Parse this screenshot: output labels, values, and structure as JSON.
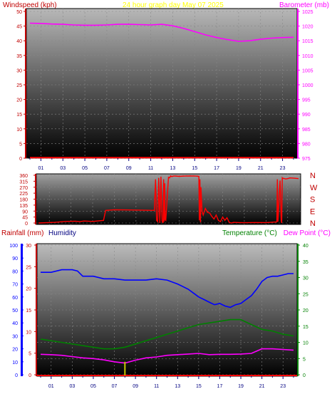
{
  "chart_data": [
    {
      "type": "line",
      "title": "24 hour graph day   May 07 2025",
      "y_left_label": "Windspeed (kph)",
      "y_right_label": "Barometer (mb)",
      "x_ticks": [
        "01",
        "03",
        "05",
        "07",
        "09",
        "11",
        "13",
        "15",
        "17",
        "19",
        "21",
        "23"
      ],
      "y_left_ticks": [
        "0",
        "5",
        "10",
        "15",
        "20",
        "25",
        "30",
        "35",
        "40",
        "45",
        "50"
      ],
      "y_right_ticks": [
        "975",
        "980",
        "985",
        "990",
        "995",
        "1000",
        "1005",
        "1010",
        "1015",
        "1020",
        "1025"
      ],
      "ylim_left": [
        0,
        50
      ],
      "ylim_right": [
        975,
        1025
      ],
      "series": [
        {
          "axis": "right",
          "color": "#ff00ff",
          "x": [
            0,
            1,
            2,
            3,
            4,
            5,
            6,
            7,
            8,
            9,
            10,
            11,
            12,
            13,
            14,
            15,
            16,
            17,
            18,
            19,
            20,
            21,
            22,
            23,
            24
          ],
          "y": [
            1021.0,
            1020.9,
            1020.7,
            1020.6,
            1020.4,
            1020.3,
            1020.3,
            1020.4,
            1020.6,
            1020.6,
            1020.5,
            1020.4,
            1020.6,
            1020.1,
            1019.2,
            1018.1,
            1017.0,
            1016.1,
            1015.4,
            1014.8,
            1015.0,
            1015.5,
            1015.9,
            1016.1,
            1016.2
          ]
        },
        {
          "axis": "left",
          "color": "#ff0000",
          "x": [
            0,
            24
          ],
          "y": [
            0.2,
            0.2
          ]
        }
      ]
    },
    {
      "type": "line",
      "y_ticks": [
        "360",
        "315",
        "270",
        "225",
        "180",
        "135",
        "90",
        "45",
        "0"
      ],
      "right_labels": [
        "N",
        "W",
        "S",
        "E",
        "N"
      ],
      "ylim": [
        0,
        360
      ],
      "series": [
        {
          "color": "#ff0000",
          "x": [
            0,
            1.5,
            2.5,
            3.4,
            3.8,
            4.2,
            5.0,
            6.0,
            6.2,
            7.0,
            8.0,
            9.0,
            10.0,
            10.7,
            10.8,
            10.9,
            11.0,
            11.1,
            11.2,
            11.3,
            11.4,
            11.5,
            11.55,
            11.6,
            11.65,
            11.7,
            11.75,
            12.0,
            12.1,
            12.2,
            12.3,
            12.5,
            13.0,
            13.5,
            14.0,
            14.5,
            14.8,
            14.85,
            14.9,
            14.95,
            15.0,
            15.1,
            15.2,
            15.4,
            15.6,
            15.8,
            16.0,
            16.2,
            16.4,
            16.6,
            16.8,
            17.0,
            17.2,
            17.4,
            17.6,
            17.8,
            18.0,
            18.5,
            19.0,
            20.0,
            21.0,
            22.0,
            22.05,
            22.1,
            22.3,
            22.4,
            22.45,
            22.5,
            22.55,
            22.6,
            22.8,
            23.0,
            23.2,
            23.6,
            24.0
          ],
          "y": [
            0,
            5,
            12,
            14,
            10,
            15,
            12,
            20,
            95,
            100,
            99,
            98,
            96,
            95,
            330,
            20,
            10,
            340,
            0,
            350,
            15,
            0,
            330,
            10,
            300,
            25,
            20,
            345,
            340,
            355,
            350,
            355,
            352,
            354,
            355,
            354,
            352,
            20,
            330,
            5,
            270,
            90,
            60,
            110,
            80,
            75,
            50,
            30,
            60,
            20,
            10,
            45,
            20,
            40,
            5,
            0,
            5,
            3,
            2,
            4,
            3,
            8,
            330,
            10,
            320,
            20,
            0,
            340,
            335,
            338,
            332,
            335,
            340,
            338,
            335
          ]
        }
      ]
    },
    {
      "type": "line",
      "y_left1_label": "Rainfall (mm)",
      "y_left2_label": "Humidity",
      "y_right1_label": "Temperature (°C)",
      "y_right2_label": "Dew Point (°C)",
      "y_left1_ticks": [
        "0",
        "10",
        "20",
        "30",
        "40",
        "50",
        "60",
        "70",
        "80",
        "90",
        "100"
      ],
      "y_left2_ticks": [
        "0",
        "5",
        "10",
        "15",
        "20",
        "25",
        "30"
      ],
      "y_right_ticks": [
        "0",
        "5",
        "10",
        "15",
        "20",
        "25",
        "30",
        "35",
        "40"
      ],
      "x_ticks": [
        "01",
        "03",
        "05",
        "07",
        "09",
        "11",
        "13",
        "15",
        "17",
        "19",
        "21",
        "23"
      ],
      "series": [
        {
          "name": "Humidity",
          "color": "#0000ff",
          "x": [
            0,
            1,
            2,
            3,
            3.5,
            4,
            5,
            6,
            7,
            8,
            9,
            10,
            11,
            12,
            13,
            14,
            14.5,
            15,
            15.5,
            16,
            16.5,
            17,
            17.5,
            18,
            18.5,
            19,
            19.5,
            20,
            20.5,
            21,
            21.5,
            22,
            22.5,
            23,
            23.5,
            24
          ],
          "y": [
            79,
            79,
            81,
            81,
            80,
            76,
            76,
            74,
            74,
            73,
            73,
            73,
            74,
            73,
            70,
            66,
            63,
            60,
            58,
            56,
            54,
            55,
            53,
            52,
            54,
            55,
            58,
            61,
            66,
            72,
            75,
            76,
            76,
            77,
            78,
            78
          ]
        },
        {
          "name": "Temperature",
          "color": "#008000",
          "x": [
            0,
            2,
            4,
            6,
            7,
            8,
            9,
            10,
            11,
            12,
            13,
            14,
            15,
            16,
            17,
            18,
            19,
            20,
            21,
            22,
            23,
            24
          ],
          "y": [
            11,
            10,
            9,
            8,
            8,
            8.5,
            9.5,
            10.5,
            11.5,
            12.5,
            13.5,
            14.5,
            15.5,
            16,
            16.5,
            17,
            17,
            15.5,
            14,
            13.5,
            12.5,
            12
          ]
        },
        {
          "name": "Dew Point",
          "color": "#ff00ff",
          "x": [
            0,
            1,
            2,
            3,
            4,
            5,
            6,
            7,
            8,
            9,
            10,
            11,
            12,
            13,
            14,
            15,
            16,
            17,
            18,
            19,
            20,
            21,
            22,
            23,
            24
          ],
          "y": [
            6.3,
            6.2,
            6.0,
            5.6,
            5.2,
            5.0,
            4.6,
            4.0,
            3.6,
            4.5,
            5.2,
            5.5,
            6.0,
            6.2,
            6.4,
            6.6,
            6.2,
            6.3,
            6.3,
            6.4,
            6.6,
            8.0,
            8.0,
            7.8,
            7.6
          ]
        },
        {
          "name": "Rainfall",
          "color": "#c8c800",
          "x": [
            8
          ],
          "y": [
            3
          ]
        }
      ]
    }
  ]
}
